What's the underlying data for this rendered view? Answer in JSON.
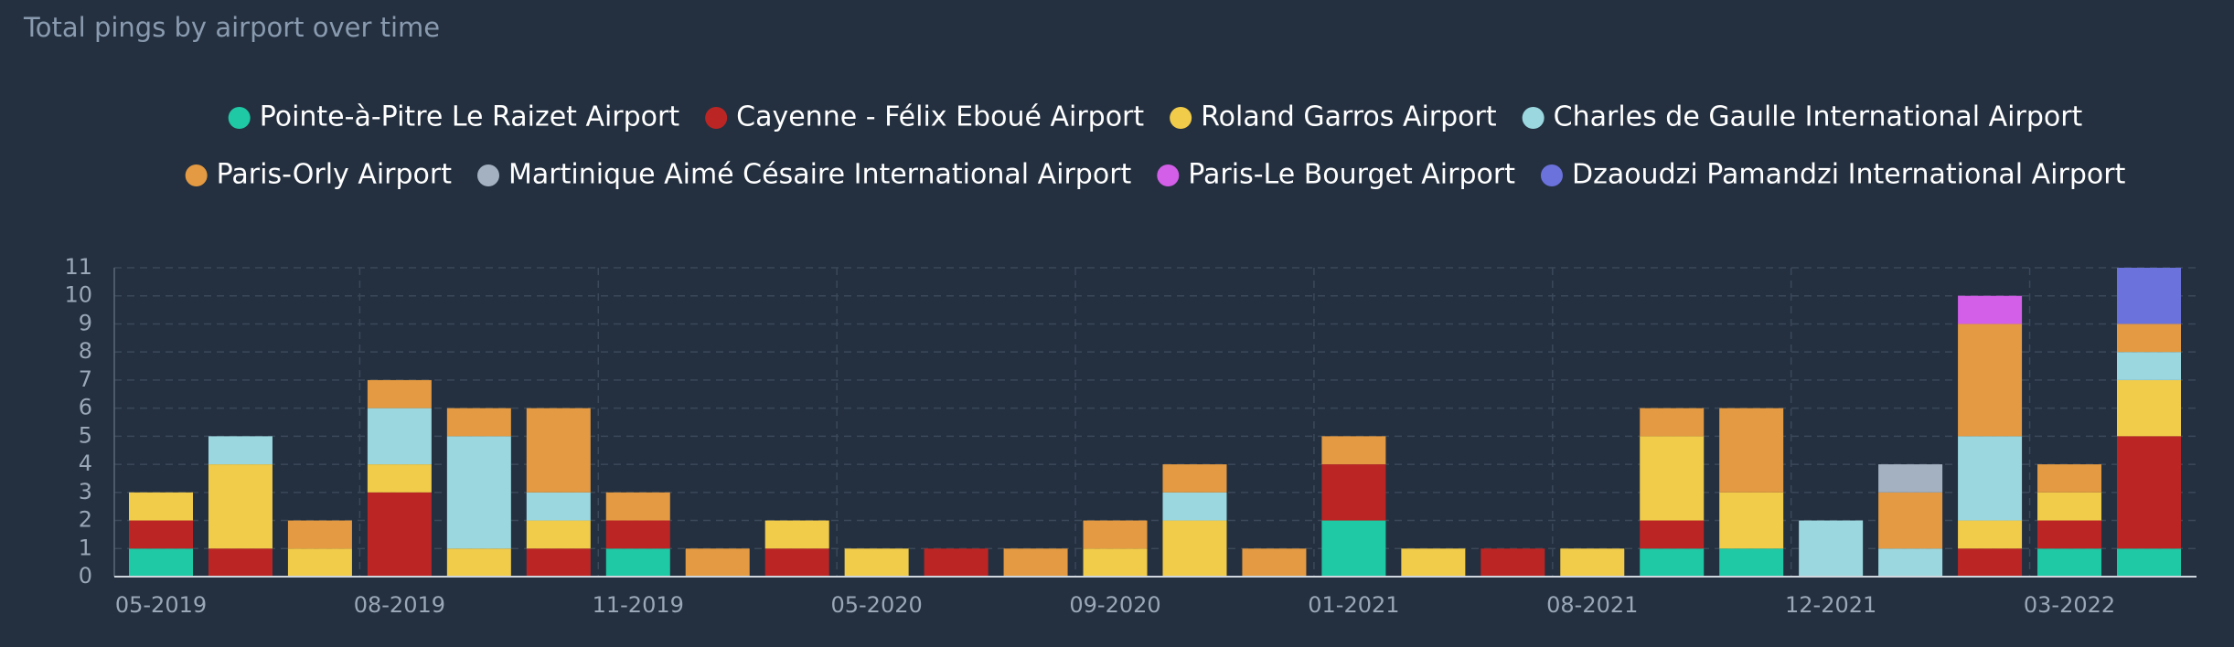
{
  "chart_data": {
    "type": "stacked_bar",
    "title": "Total pings by airport over time",
    "categories": [
      "05-2019",
      null,
      null,
      "08-2019",
      null,
      null,
      "11-2019",
      null,
      null,
      "05-2020",
      null,
      null,
      "09-2020",
      null,
      null,
      "01-2021",
      null,
      null,
      "08-2021",
      null,
      null,
      "12-2021",
      null,
      null,
      "03-2022",
      null
    ],
    "series": [
      {
        "name": "Pointe-à-Pitre Le Raizet Airport",
        "color": "#1fc9a5",
        "values": [
          1,
          0,
          0,
          0,
          0,
          0,
          1,
          0,
          0,
          0,
          0,
          0,
          0,
          0,
          0,
          2,
          0,
          0,
          0,
          1,
          1,
          0,
          0,
          0,
          1,
          1
        ]
      },
      {
        "name": "Cayenne - Félix Eboué Airport",
        "color": "#bb2625",
        "values": [
          1,
          1,
          0,
          3,
          0,
          1,
          1,
          0,
          1,
          0,
          1,
          0,
          0,
          0,
          0,
          2,
          0,
          1,
          0,
          1,
          0,
          0,
          0,
          1,
          1,
          4
        ]
      },
      {
        "name": "Roland Garros Airport",
        "color": "#f1cb4a",
        "values": [
          1,
          3,
          1,
          1,
          1,
          1,
          0,
          0,
          1,
          1,
          0,
          0,
          1,
          2,
          0,
          0,
          1,
          0,
          1,
          3,
          2,
          0,
          0,
          1,
          1,
          2
        ]
      },
      {
        "name": "Charles de Gaulle International Airport",
        "color": "#9ad7df",
        "values": [
          0,
          1,
          0,
          2,
          4,
          1,
          0,
          0,
          0,
          0,
          0,
          0,
          0,
          1,
          0,
          0,
          0,
          0,
          0,
          0,
          0,
          2,
          1,
          3,
          0,
          1
        ]
      },
      {
        "name": "Paris-Orly Airport",
        "color": "#e39a42",
        "values": [
          0,
          0,
          1,
          1,
          1,
          3,
          1,
          1,
          0,
          0,
          0,
          1,
          1,
          1,
          1,
          1,
          0,
          0,
          0,
          1,
          3,
          0,
          2,
          4,
          1,
          1
        ]
      },
      {
        "name": "Martinique Aimé Césaire International Airport",
        "color": "#a3b1c0",
        "values": [
          0,
          0,
          0,
          0,
          0,
          0,
          0,
          0,
          0,
          0,
          0,
          0,
          0,
          0,
          0,
          0,
          0,
          0,
          0,
          0,
          0,
          0,
          1,
          0,
          0,
          0
        ]
      },
      {
        "name": "Paris-Le Bourget Airport",
        "color": "#d35ee8",
        "values": [
          0,
          0,
          0,
          0,
          0,
          0,
          0,
          0,
          0,
          0,
          0,
          0,
          0,
          0,
          0,
          0,
          0,
          0,
          0,
          0,
          0,
          0,
          0,
          1,
          0,
          0
        ]
      },
      {
        "name": "Dzaoudzi Pamandzi International Airport",
        "color": "#6b72dc",
        "values": [
          0,
          0,
          0,
          0,
          0,
          0,
          0,
          0,
          0,
          0,
          0,
          0,
          0,
          0,
          0,
          0,
          0,
          0,
          0,
          0,
          0,
          0,
          0,
          0,
          0,
          2
        ]
      }
    ],
    "ylim": [
      0,
      11
    ],
    "yticks": [
      0,
      1,
      2,
      3,
      4,
      5,
      6,
      7,
      8,
      9,
      10,
      11
    ],
    "grid": true
  }
}
